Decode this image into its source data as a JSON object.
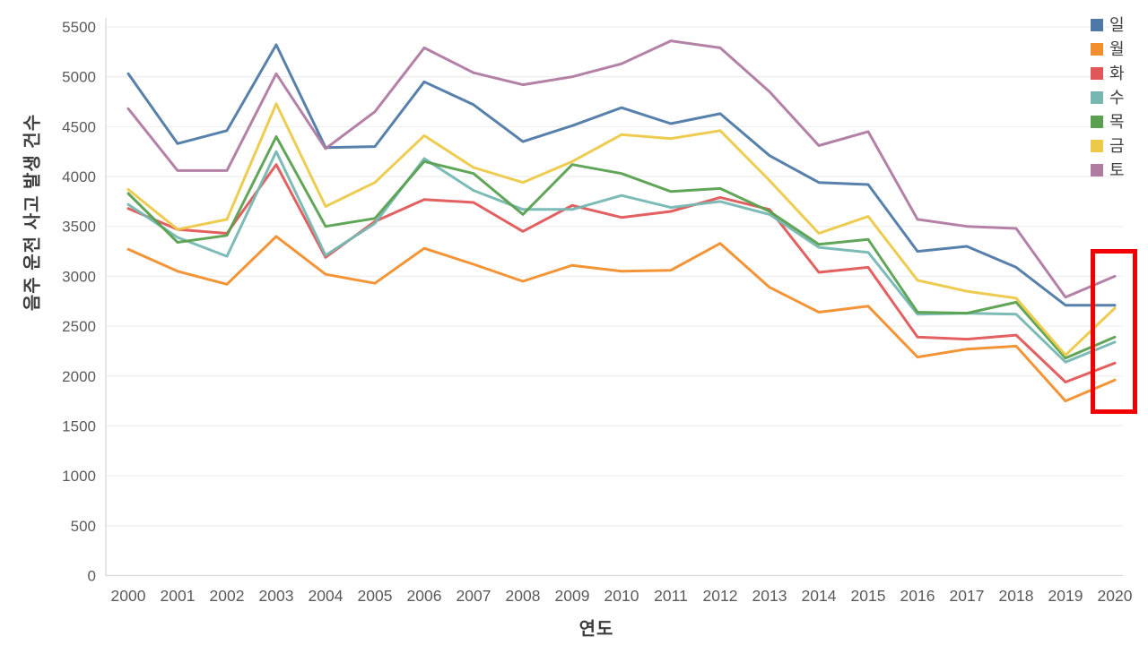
{
  "chart_data": {
    "type": "line",
    "title": "",
    "xlabel": "연도",
    "ylabel": "음주 운전 사고 발생 건수",
    "x": [
      2000,
      2001,
      2002,
      2003,
      2004,
      2005,
      2006,
      2007,
      2008,
      2009,
      2010,
      2011,
      2012,
      2013,
      2014,
      2015,
      2016,
      2017,
      2018,
      2019,
      2020
    ],
    "series": [
      {
        "name": "일",
        "color": "#4e79a7",
        "values": [
          5030,
          4330,
          4460,
          5320,
          4290,
          4300,
          4950,
          4720,
          4350,
          4510,
          4690,
          4530,
          4630,
          4210,
          3940,
          3920,
          3250,
          3300,
          3090,
          2710,
          2710
        ]
      },
      {
        "name": "월",
        "color": "#f28e2b",
        "values": [
          3270,
          3050,
          2920,
          3400,
          3020,
          2930,
          3280,
          3120,
          2950,
          3110,
          3050,
          3060,
          3330,
          2890,
          2640,
          2700,
          2190,
          2270,
          2300,
          1750,
          1960
        ]
      },
      {
        "name": "화",
        "color": "#e15759",
        "values": [
          3680,
          3470,
          3430,
          4120,
          3190,
          3550,
          3770,
          3740,
          3450,
          3710,
          3590,
          3650,
          3790,
          3670,
          3040,
          3090,
          2390,
          2370,
          2410,
          1940,
          2130
        ]
      },
      {
        "name": "수",
        "color": "#76b7b2",
        "values": [
          3720,
          3390,
          3200,
          4250,
          3210,
          3530,
          4180,
          3860,
          3670,
          3670,
          3810,
          3690,
          3750,
          3620,
          3290,
          3240,
          2620,
          2630,
          2620,
          2140,
          2340
        ]
      },
      {
        "name": "목",
        "color": "#59a14f",
        "values": [
          3830,
          3340,
          3410,
          4400,
          3500,
          3580,
          4150,
          4030,
          3620,
          4120,
          4030,
          3850,
          3880,
          3650,
          3320,
          3370,
          2640,
          2630,
          2740,
          2180,
          2390
        ]
      },
      {
        "name": "금",
        "color": "#edc948",
        "values": [
          3870,
          3470,
          3570,
          4730,
          3700,
          3940,
          4410,
          4090,
          3940,
          4150,
          4420,
          4380,
          4460,
          3960,
          3430,
          3600,
          2960,
          2850,
          2780,
          2210,
          2680
        ]
      },
      {
        "name": "토",
        "color": "#b07aa1",
        "values": [
          4680,
          4060,
          4060,
          5030,
          4280,
          4650,
          5290,
          5040,
          4920,
          5000,
          5130,
          5360,
          5290,
          4850,
          4310,
          4450,
          3570,
          3500,
          3480,
          2790,
          3000
        ]
      }
    ],
    "ylim": [
      0,
      5500
    ],
    "yticks": [
      0,
      500,
      1000,
      1500,
      2000,
      2500,
      3000,
      3500,
      4000,
      4500,
      5000,
      5500
    ],
    "grid": "horizontal",
    "legend_position": "top-right",
    "annotation": {
      "type": "highlight-box",
      "label": "2020-highlight",
      "color": "#f20000",
      "x_year": 2020,
      "y_value_range": [
        1640,
        3060
      ]
    },
    "colors": {
      "grid": "#efefef",
      "axis_line": "#d9d9d9",
      "tick_label": "#5a5a5a",
      "axis_title": "#3d3d3d",
      "legend_label": "#3f3f3f",
      "background": "#ffffff"
    }
  }
}
